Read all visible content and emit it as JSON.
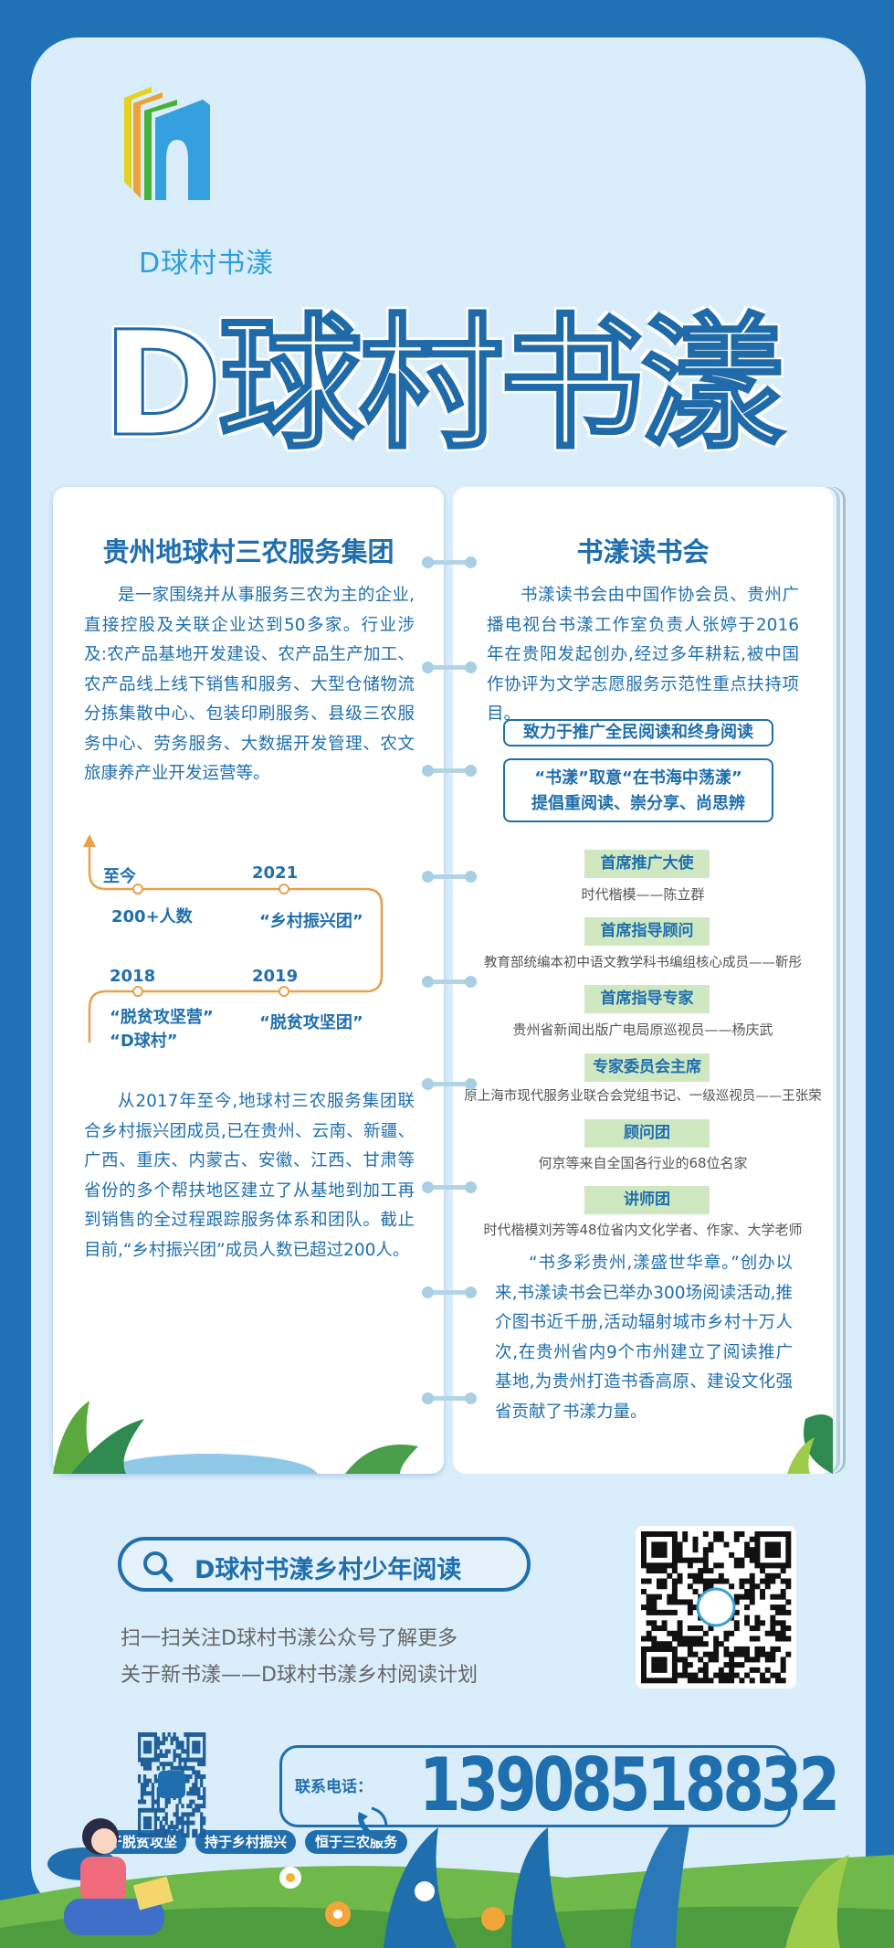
{
  "brand": {
    "logo_text": "D球村书漾",
    "title": "D球村书漾"
  },
  "left_card": {
    "title": "贵州地球村三农服务集团",
    "intro": "是一家围绕并从事服务三农为主的企业,直接控股及关联企业达到50多家。行业涉及:农产品基地开发建设、农产品生产加工、农产品线上线下销售和服务、大型仓储物流分拣集散中心、包装印刷服务、县级三农服务中心、劳务服务、大数据开发管理、农文旅康养产业开发运营等。",
    "timeline": [
      {
        "year": "至今",
        "text": "200+人数"
      },
      {
        "year": "2021",
        "text": "“乡村振兴团”"
      },
      {
        "year": "2018",
        "text": "“脱贫攻坚营”\n“D球村”"
      },
      {
        "year": "2019",
        "text": "“脱贫攻坚团”"
      }
    ],
    "history": "从2017年至今,地球村三农服务集团联合乡村振兴团成员,已在贵州、云南、新疆、广西、重庆、内蒙古、安徽、江西、甘肃等省份的多个帮扶地区建立了从基地到加工再到销售的全过程跟踪服务体系和团队。截止目前,“乡村振兴团”成员人数已超过200人。",
    "tags": [
      "始于脱贫攻坚",
      "持于乡村振兴",
      "恒于三农服务"
    ]
  },
  "right_card": {
    "title": "书漾读书会",
    "intro": "书漾读书会由中国作协会员、贵州广播电视台书漾工作室负责人张婷于2016年在贵阳发起创办,经过多年耕耘,被中国作协评为文学志愿服务示范性重点扶持项目。",
    "motto1": "致力于推广全民阅读和终身阅读",
    "motto2_line1": "“书漾”取意“在书海中荡漾”",
    "motto2_line2": "提倡重阅读、崇分享、尚思辨",
    "roles": [
      {
        "label": "首席推广大使",
        "person": "时代楷模——陈立群"
      },
      {
        "label": "首席指导顾问",
        "person": "教育部统编本初中语文教学科书编组核心成员——靳彤"
      },
      {
        "label": "首席指导专家",
        "person": "贵州省新闻出版广电局原巡视员——杨庆武"
      },
      {
        "label": "专家委员会主席",
        "person": "原上海市现代服务业联合会党组书记、一级巡视员——王张荣"
      },
      {
        "label": "顾问团",
        "person": "何京等来自全国各行业的68位名家"
      },
      {
        "label": "讲师团",
        "person": "时代楷模刘芳等48位省内文化学者、作家、大学老师"
      }
    ],
    "closing": "“书多彩贵州,漾盛世华章。”创办以来,书漾读书会已举办300场阅读活动,推介图书近千册,活动辐射城市乡村十万人次,在贵州省内9个市州建立了阅读推广基地,为贵州打造书香高原、建设文化强省贡献了书漾力量。"
  },
  "footer": {
    "search_label": "D球村书漾乡村少年阅读",
    "line1": "扫一扫关注D球村书漾公众号了解更多",
    "line2": "关于新书漾——D球村书漾乡村阅读计划",
    "contact_label": "联系电话：",
    "phone": "13908518832"
  },
  "colors": {
    "primary": "#1f6fae",
    "panel": "#d9edfb",
    "label_green": "#cfe8c2",
    "timeline": "#e8a04a"
  }
}
